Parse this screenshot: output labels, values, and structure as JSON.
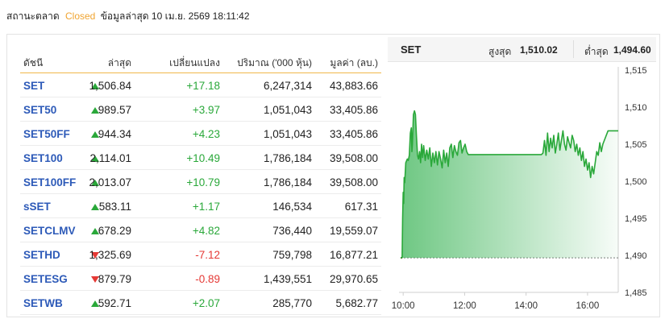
{
  "status": {
    "label": "สถานะตลาด",
    "state": "Closed",
    "updated": "ข้อมูลล่าสุด 10 เม.ย. 2569 18:11:42"
  },
  "table": {
    "headers": {
      "index": "ดัชนี",
      "last": "ล่าสุด",
      "change": "เปลี่ยนแปลง",
      "volume": "ปริมาณ ('000 หุ้น)",
      "value": "มูลค่า (ลบ.)"
    },
    "rows": [
      {
        "name": "SET",
        "direction": "up",
        "last": "1,506.84",
        "change": "+17.18",
        "volume": "6,247,314",
        "value": "43,883.66"
      },
      {
        "name": "SET50",
        "direction": "up",
        "last": "989.57",
        "change": "+3.97",
        "volume": "1,051,043",
        "value": "33,405.86"
      },
      {
        "name": "SET50FF",
        "direction": "up",
        "last": "944.34",
        "change": "+4.23",
        "volume": "1,051,043",
        "value": "33,405.86"
      },
      {
        "name": "SET100",
        "direction": "up",
        "last": "2,114.01",
        "change": "+10.49",
        "volume": "1,786,184",
        "value": "39,508.00"
      },
      {
        "name": "SET100FF",
        "direction": "up",
        "last": "2,013.07",
        "change": "+10.79",
        "volume": "1,786,184",
        "value": "39,508.00"
      },
      {
        "name": "sSET",
        "direction": "up",
        "last": "583.11",
        "change": "+1.17",
        "volume": "146,534",
        "value": "617.31"
      },
      {
        "name": "SETCLMV",
        "direction": "up",
        "last": "678.29",
        "change": "+4.82",
        "volume": "736,440",
        "value": "19,559.07"
      },
      {
        "name": "SETHD",
        "direction": "down",
        "last": "1,325.69",
        "change": "-7.12",
        "volume": "759,798",
        "value": "16,877.21"
      },
      {
        "name": "SETESG",
        "direction": "down",
        "last": "879.79",
        "change": "-0.89",
        "volume": "1,439,551",
        "value": "29,970.65"
      },
      {
        "name": "SETWB",
        "direction": "up",
        "last": "592.71",
        "change": "+2.07",
        "volume": "285,770",
        "value": "5,682.77"
      }
    ]
  },
  "chart_panel": {
    "symbol": "SET",
    "high_label": "สูงสุด",
    "high_value": "1,510.02",
    "low_label": "ต่ำสุด",
    "low_value": "1,494.60"
  },
  "colors": {
    "up": "#2aa83a",
    "down": "#e53935",
    "link": "#2d5ab8",
    "closed": "#f0a430",
    "prev_close": "#8a4a1a"
  },
  "chart_data": {
    "type": "area",
    "title": "",
    "xlabel": "",
    "ylabel": "",
    "ylim": [
      1485,
      1515
    ],
    "yticks": [
      "1,485",
      "1,490",
      "1,495",
      "1,500",
      "1,505",
      "1,510",
      "1,515"
    ],
    "xticks": [
      "10:00",
      "12:00",
      "14:00",
      "16:00"
    ],
    "xlim": [
      "09:55",
      "17:00"
    ],
    "previous_close": 1489.66,
    "grid": false,
    "series": [
      {
        "x": [
          "09:55",
          "09:58",
          "09:59",
          "10:00",
          "10:01",
          "10:02",
          "10:03",
          "10:05",
          "10:08",
          "10:10",
          "10:12",
          "10:14",
          "10:16",
          "10:17",
          "10:18",
          "10:20",
          "10:22",
          "10:24",
          "10:26",
          "10:28",
          "10:30",
          "10:32",
          "10:34",
          "10:36",
          "10:38",
          "10:40",
          "10:43",
          "10:46",
          "10:49",
          "10:52",
          "10:55",
          "10:58",
          "11:01",
          "11:04",
          "11:07",
          "11:10",
          "11:13",
          "11:16",
          "11:19",
          "11:22",
          "11:25",
          "11:28",
          "11:31",
          "11:34",
          "11:37",
          "11:40",
          "11:43",
          "11:46",
          "11:49",
          "11:52",
          "11:55",
          "11:58",
          "12:01",
          "12:04",
          "12:07",
          "12:10",
          "12:13",
          "12:16",
          "12:19",
          "12:22",
          "12:25",
          "12:28",
          "12:30",
          "14:00",
          "14:03",
          "14:06",
          "14:09",
          "14:12",
          "14:15",
          "14:18",
          "14:21",
          "14:24",
          "14:27",
          "14:30",
          "14:33",
          "14:36",
          "14:39",
          "14:42",
          "14:45",
          "14:48",
          "14:51",
          "14:54",
          "14:57",
          "15:00",
          "15:03",
          "15:06",
          "15:09",
          "15:12",
          "15:15",
          "15:18",
          "15:21",
          "15:24",
          "15:27",
          "15:30",
          "15:33",
          "15:36",
          "15:39",
          "15:42",
          "15:45",
          "15:48",
          "15:51",
          "15:54",
          "15:57",
          "16:00",
          "16:03",
          "16:06",
          "16:09",
          "16:12",
          "16:15",
          "16:18",
          "16:21",
          "16:24",
          "16:27",
          "16:30",
          "16:40",
          "16:45",
          "17:00"
        ],
        "y": [
          1489.7,
          1489.7,
          1495.0,
          1498.5,
          1497.0,
          1500.5,
          1499.8,
          1502.5,
          1503.0,
          1502.8,
          1503.5,
          1506.5,
          1507.2,
          1504.0,
          1505.0,
          1509.0,
          1509.5,
          1509.0,
          1506.0,
          1503.5,
          1503.0,
          1504.0,
          1502.5,
          1505.0,
          1503.2,
          1504.8,
          1502.8,
          1504.2,
          1503.0,
          1504.5,
          1502.0,
          1503.8,
          1502.5,
          1504.0,
          1502.2,
          1504.0,
          1503.0,
          1501.8,
          1504.2,
          1502.5,
          1503.8,
          1502.0,
          1504.5,
          1505.0,
          1503.2,
          1504.8,
          1504.0,
          1503.5,
          1505.2,
          1505.5,
          1503.8,
          1504.5,
          1505.0,
          1504.0,
          1503.6,
          1503.6,
          1503.6,
          1503.6,
          1503.6,
          1503.6,
          1503.6,
          1503.6,
          1503.6,
          1503.6,
          1503.6,
          1503.6,
          1503.6,
          1503.6,
          1503.6,
          1503.6,
          1503.6,
          1503.6,
          1503.6,
          1503.6,
          1503.8,
          1505.5,
          1503.5,
          1506.5,
          1504.0,
          1505.8,
          1504.5,
          1506.2,
          1503.8,
          1505.0,
          1506.5,
          1504.2,
          1505.5,
          1506.8,
          1505.0,
          1504.2,
          1506.0,
          1505.2,
          1504.5,
          1506.2,
          1505.5,
          1504.0,
          1505.0,
          1503.5,
          1504.5,
          1502.8,
          1504.0,
          1502.0,
          1503.0,
          1501.5,
          1502.5,
          1500.5,
          1502.0,
          1501.0,
          1502.5,
          1504.0,
          1503.5,
          1505.2,
          1504.0,
          1505.0,
          1506.8,
          1506.8,
          1506.8
        ]
      }
    ]
  }
}
